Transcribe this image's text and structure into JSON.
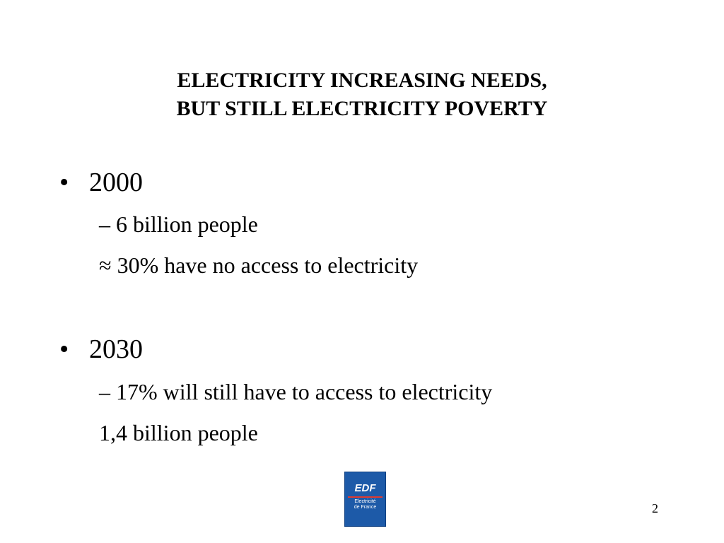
{
  "title": {
    "line1": "ELECTRICITY INCREASING NEEDS,",
    "line2": "BUT STILL ELECTRICITY POVERTY"
  },
  "bullets": [
    {
      "marker": "•",
      "label": "2000",
      "items": [
        "– 6 billion people",
        "≈ 30% have no access to electricity"
      ]
    },
    {
      "marker": "•",
      "label": "2030",
      "items": [
        "– 17% will still have to access to electricity",
        "1,4 billion people"
      ]
    }
  ],
  "logo": {
    "brand": "EDF",
    "subtitle": "Electricité\nde France",
    "background_color": "#1d5aa8",
    "stripe_color": "#e03a2f"
  },
  "page_number": "2"
}
